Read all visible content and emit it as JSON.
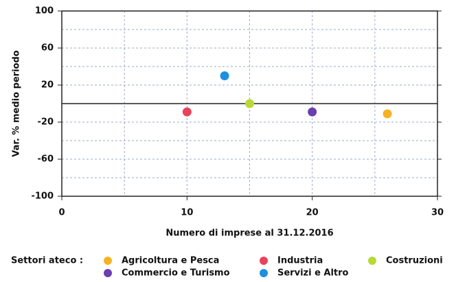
{
  "chart_data": {
    "type": "scatter",
    "x_label": "Numero di imprese al 31.12.2016",
    "y_label": "Var. % medio periodo",
    "legend_title": "Settori ateco :",
    "xlim": [
      0,
      30
    ],
    "xticks": [
      0,
      10,
      20,
      30
    ],
    "ylim": [
      -100,
      100
    ],
    "yticks": [
      -100,
      -60,
      -20,
      20,
      60,
      100
    ],
    "grid": true,
    "legend": "bottom",
    "series": [
      {
        "name": "Agricoltura e Pesca",
        "color": "#f5b324",
        "x": [
          26
        ],
        "values": [
          -11
        ]
      },
      {
        "name": "Industria",
        "color": "#e8435a",
        "x": [
          10
        ],
        "values": [
          -9
        ]
      },
      {
        "name": "Costruzioni",
        "color": "#b8d936",
        "x": [
          15
        ],
        "values": [
          0
        ]
      },
      {
        "name": "Commercio e Turismo",
        "color": "#6a3fb0",
        "x": [
          20
        ],
        "values": [
          -9
        ]
      },
      {
        "name": "Servizi e Altro",
        "color": "#1f8fe0",
        "x": [
          13
        ],
        "values": [
          30
        ]
      }
    ]
  }
}
